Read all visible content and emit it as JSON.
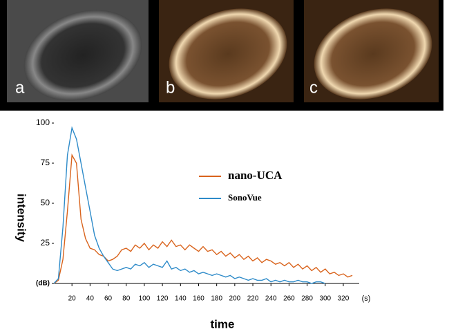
{
  "panel_labels": [
    "a",
    "b",
    "c"
  ],
  "chart_data": {
    "type": "line",
    "x_label": "time",
    "y_label": "intensity",
    "x_unit": "(s)",
    "x": [
      0,
      5,
      10,
      15,
      20,
      25,
      30,
      35,
      40,
      45,
      50,
      55,
      60,
      65,
      70,
      75,
      80,
      85,
      90,
      95,
      100,
      105,
      110,
      115,
      120,
      125,
      130,
      135,
      140,
      145,
      150,
      155,
      160,
      165,
      170,
      175,
      180,
      185,
      190,
      195,
      200,
      205,
      210,
      215,
      220,
      225,
      230,
      235,
      240,
      245,
      250,
      255,
      260,
      265,
      270,
      275,
      280,
      285,
      290,
      295,
      300,
      305,
      310,
      315,
      320,
      325,
      330
    ],
    "series": [
      {
        "name": "nano-UCA",
        "color": "#d9631c",
        "values": [
          0,
          2,
          15,
          45,
          80,
          75,
          40,
          28,
          22,
          21,
          18,
          17,
          14,
          15,
          17,
          21,
          22,
          20,
          24,
          22,
          25,
          21,
          24,
          22,
          26,
          23,
          27,
          23,
          24,
          21,
          24,
          22,
          20,
          23,
          20,
          21,
          18,
          20,
          17,
          19,
          16,
          18,
          15,
          17,
          14,
          16,
          13,
          15,
          14,
          12,
          13,
          11,
          13,
          10,
          12,
          9,
          11,
          8,
          10,
          7,
          9,
          6,
          7,
          5,
          6,
          4,
          5
        ]
      },
      {
        "name": "SonoVue",
        "color": "#2e8bc9",
        "values": [
          0,
          3,
          35,
          80,
          97,
          90,
          75,
          60,
          45,
          30,
          22,
          17,
          13,
          9,
          8,
          9,
          10,
          9,
          12,
          11,
          13,
          10,
          12,
          11,
          10,
          14,
          9,
          10,
          8,
          9,
          7,
          8,
          6,
          7,
          6,
          5,
          6,
          5,
          4,
          5,
          3,
          4,
          3,
          2,
          3,
          2,
          2,
          3,
          1,
          2,
          1,
          2,
          1,
          1,
          2,
          1,
          1,
          0,
          1,
          1,
          0,
          null,
          null,
          null,
          null,
          null,
          null
        ]
      }
    ],
    "xlim": [
      0,
      333
    ],
    "ylim": [
      0,
      100
    ],
    "xticks": [
      20,
      40,
      60,
      80,
      100,
      120,
      140,
      160,
      180,
      200,
      220,
      240,
      260,
      280,
      300,
      320
    ],
    "yticks": [
      {
        "value": 0,
        "label": "(dB)"
      },
      25,
      50,
      75,
      100
    ]
  }
}
